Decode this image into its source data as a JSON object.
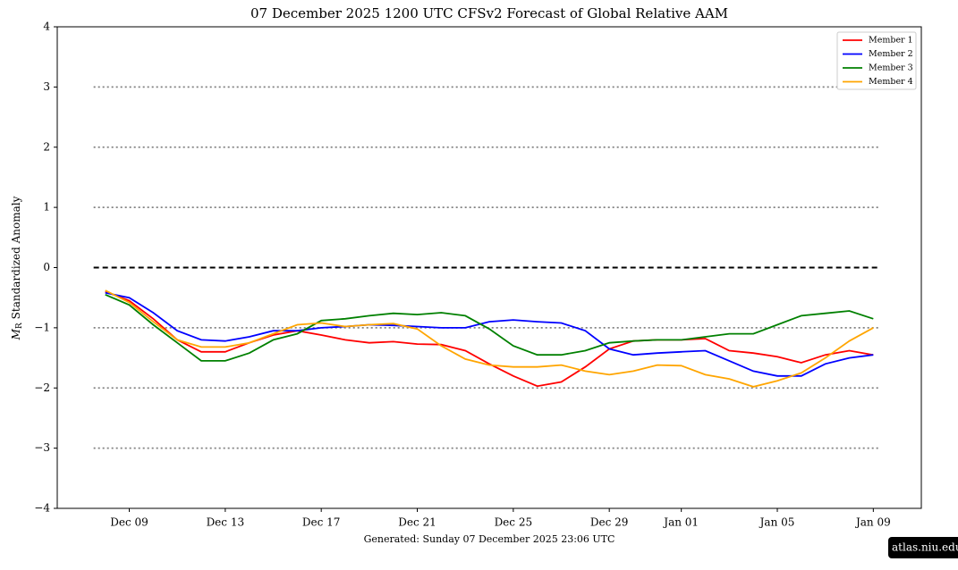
{
  "chart_data": {
    "type": "line",
    "title": "07  December  2025 1200 UTC   CFSv2 Forecast of Global Relative AAM",
    "ylabel_symbol": "M",
    "ylabel_subscript": "R",
    "ylabel": "Standardized Anomaly",
    "x": [
      "Dec 08",
      "Dec 09",
      "Dec 10",
      "Dec 11",
      "Dec 12",
      "Dec 13",
      "Dec 14",
      "Dec 15",
      "Dec 16",
      "Dec 17",
      "Dec 18",
      "Dec 19",
      "Dec 20",
      "Dec 21",
      "Dec 22",
      "Dec 23",
      "Dec 24",
      "Dec 25",
      "Dec 26",
      "Dec 27",
      "Dec 28",
      "Dec 29",
      "Dec 30",
      "Dec 31",
      "Jan 01",
      "Jan 02",
      "Jan 03",
      "Jan 04",
      "Jan 05",
      "Jan 06",
      "Jan 07",
      "Jan 08",
      "Jan 09"
    ],
    "series": [
      {
        "name": "Member 1",
        "color": "#ff0000",
        "values": [
          -0.4,
          -0.55,
          -0.85,
          -1.2,
          -1.4,
          -1.4,
          -1.25,
          -1.12,
          -1.05,
          -1.12,
          -1.2,
          -1.25,
          -1.23,
          -1.27,
          -1.28,
          -1.38,
          -1.6,
          -1.8,
          -1.97,
          -1.9,
          -1.65,
          -1.35,
          -1.22,
          -1.2,
          -1.2,
          -1.18,
          -1.38,
          -1.42,
          -1.48,
          -1.58,
          -1.45,
          -1.38,
          -1.45
        ]
      },
      {
        "name": "Member 2",
        "color": "#0000ff",
        "values": [
          -0.42,
          -0.5,
          -0.75,
          -1.05,
          -1.2,
          -1.22,
          -1.15,
          -1.05,
          -1.05,
          -1.0,
          -0.98,
          -0.95,
          -0.96,
          -0.98,
          -1.0,
          -1.0,
          -0.9,
          -0.87,
          -0.9,
          -0.92,
          -1.05,
          -1.35,
          -1.45,
          -1.42,
          -1.4,
          -1.38,
          -1.55,
          -1.72,
          -1.8,
          -1.8,
          -1.6,
          -1.5,
          -1.45
        ]
      },
      {
        "name": "Member 3",
        "color": "#008000",
        "values": [
          -0.45,
          -0.62,
          -0.95,
          -1.25,
          -1.55,
          -1.55,
          -1.42,
          -1.2,
          -1.1,
          -0.88,
          -0.85,
          -0.8,
          -0.76,
          -0.78,
          -0.75,
          -0.8,
          -1.02,
          -1.3,
          -1.45,
          -1.45,
          -1.38,
          -1.25,
          -1.22,
          -1.2,
          -1.2,
          -1.15,
          -1.1,
          -1.1,
          -0.95,
          -0.8,
          -0.76,
          -0.72,
          -0.85
        ]
      },
      {
        "name": "Member 4",
        "color": "#ffa500",
        "values": [
          -0.38,
          -0.58,
          -0.9,
          -1.2,
          -1.32,
          -1.32,
          -1.25,
          -1.1,
          -0.95,
          -0.92,
          -0.98,
          -0.95,
          -0.93,
          -1.02,
          -1.3,
          -1.52,
          -1.62,
          -1.65,
          -1.65,
          -1.62,
          -1.72,
          -1.78,
          -1.72,
          -1.62,
          -1.63,
          -1.78,
          -1.85,
          -1.98,
          -1.88,
          -1.75,
          -1.5,
          -1.22,
          -1.0
        ]
      }
    ],
    "xlim": [
      "Dec 06",
      "Jan 11"
    ],
    "xticks": [
      "Dec 09",
      "Dec 13",
      "Dec 17",
      "Dec 21",
      "Dec 25",
      "Dec 29",
      "Jan 01",
      "Jan 05",
      "Jan 09"
    ],
    "ylim": [
      -4,
      4
    ],
    "yticks": [
      {
        "value": -4,
        "label": "−4"
      },
      {
        "value": -3,
        "label": "−3"
      },
      {
        "value": -2,
        "label": "−2"
      },
      {
        "value": -1,
        "label": "−1"
      },
      0,
      1,
      2,
      3,
      4
    ],
    "dotted_lines": [
      -3,
      -2,
      -1,
      1,
      2,
      3
    ],
    "dashed_line": 0,
    "legend": "upper right",
    "footer": "Generated: Sunday  07  December  2025  23:06 UTC",
    "watermark": "atlas.niu.edu"
  }
}
